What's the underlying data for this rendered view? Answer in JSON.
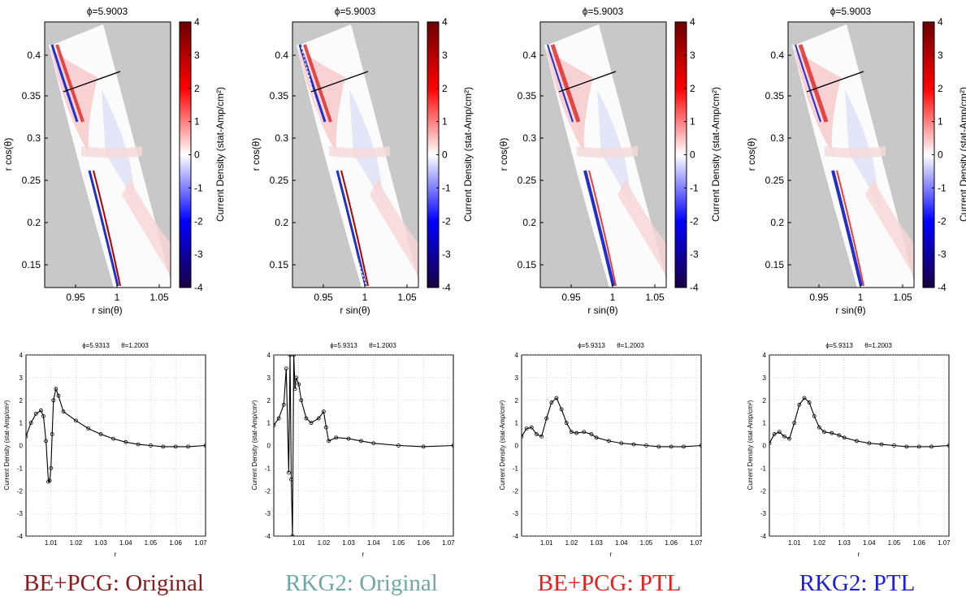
{
  "colormap": {
    "low": "#1a0040",
    "mid": "#ffffff",
    "high": "#6b0000"
  },
  "panels": [
    {
      "label": "BE+PCG: Original",
      "label_color": "#8b1a1a",
      "top": {
        "title": "ϕ=5.9003",
        "xlabel": "r sin(θ)",
        "ylabel": "r cos(θ)",
        "xticks": [
          "0.95",
          "1",
          "1.05"
        ],
        "yticks": [
          "0.15",
          "0.2",
          "0.25",
          "0.3",
          "0.35",
          "0.4"
        ],
        "cbar_label": "Current Density (stat-Amp/cm²)",
        "cbar_ticks": [
          "-4",
          "-3",
          "-2",
          "-1",
          "0",
          "1",
          "2",
          "3",
          "4"
        ]
      },
      "bottom": {
        "title_phi": "ϕ=5.9313",
        "title_theta": "θ=1.2003",
        "xlabel": "r",
        "ylabel": "Current Density (stat-Amp/cm²)",
        "xticks": [
          "1.01",
          "1.02",
          "1.03",
          "1.04",
          "1.05",
          "1.06",
          "1.07"
        ],
        "yticks": [
          "-4",
          "-3",
          "-2",
          "-1",
          "0",
          "1",
          "2",
          "3",
          "4"
        ]
      }
    },
    {
      "label": "RKG2: Original",
      "label_color": "#6fa7a7",
      "top": {
        "title": "ϕ=5.9003",
        "xlabel": "r sin(θ)",
        "ylabel": "r cos(θ)",
        "xticks": [
          "0.95",
          "1",
          "1.05"
        ],
        "yticks": [
          "0.15",
          "0.2",
          "0.25",
          "0.3",
          "0.35",
          "0.4"
        ],
        "cbar_label": "Current Density (stat-Amp/cm²)",
        "cbar_ticks": [
          "-4",
          "-3",
          "-2",
          "-1",
          "0",
          "1",
          "2",
          "3",
          "4"
        ]
      },
      "bottom": {
        "title_phi": "ϕ=5.9313",
        "title_theta": "θ=1.2003",
        "xlabel": "r",
        "ylabel": "Current Density (stat-Amp/cm²)",
        "xticks": [
          "1.01",
          "1.02",
          "1.03",
          "1.04",
          "1.05",
          "1.06",
          "1.07"
        ],
        "yticks": [
          "-4",
          "-3",
          "-2",
          "-1",
          "0",
          "1",
          "2",
          "3",
          "4"
        ]
      }
    },
    {
      "label": "BE+PCG: PTL",
      "label_color": "#ee1c1c",
      "top": {
        "title": "ϕ=5.9003",
        "xlabel": "r sin(θ)",
        "ylabel": "r cos(θ)",
        "xticks": [
          "0.95",
          "1",
          "1.05"
        ],
        "yticks": [
          "0.15",
          "0.2",
          "0.25",
          "0.3",
          "0.35",
          "0.4"
        ],
        "cbar_label": "Current Density (stat-Amp/cm²)",
        "cbar_ticks": [
          "-4",
          "-3",
          "-2",
          "-1",
          "0",
          "1",
          "2",
          "3",
          "4"
        ]
      },
      "bottom": {
        "title_phi": "ϕ=5.9313",
        "title_theta": "θ=1.2003",
        "xlabel": "r",
        "ylabel": "Current Density (stat-Amp/cm²)",
        "xticks": [
          "1.01",
          "1.02",
          "1.03",
          "1.04",
          "1.05",
          "1.06",
          "1.07"
        ],
        "yticks": [
          "-4",
          "-3",
          "-2",
          "-1",
          "0",
          "1",
          "2",
          "3",
          "4"
        ]
      }
    },
    {
      "label": "RKG2: PTL",
      "label_color": "#1a1aee",
      "top": {
        "title": "ϕ=5.9003",
        "xlabel": "r sin(θ)",
        "ylabel": "r cos(θ)",
        "xticks": [
          "0.95",
          "1",
          "1.05"
        ],
        "yticks": [
          "0.15",
          "0.2",
          "0.25",
          "0.3",
          "0.35",
          "0.4"
        ],
        "cbar_label": "Current Density (stat-Amp/cm²)",
        "cbar_ticks": [
          "-4",
          "-3",
          "-2",
          "-1",
          "0",
          "1",
          "2",
          "3",
          "4"
        ]
      },
      "bottom": {
        "title_phi": "ϕ=5.9313",
        "title_theta": "θ=1.2003",
        "xlabel": "r",
        "ylabel": "Current Density (stat-Amp/cm²)",
        "xticks": [
          "1.01",
          "1.02",
          "1.03",
          "1.04",
          "1.05",
          "1.06",
          "1.07"
        ],
        "yticks": [
          "-4",
          "-3",
          "-2",
          "-1",
          "0",
          "1",
          "2",
          "3",
          "4"
        ]
      }
    }
  ],
  "chart_data": [
    {
      "type": "line",
      "panel": "BE+PCG: Original",
      "xlim": [
        1.0,
        1.072
      ],
      "ylim": [
        -4,
        4
      ],
      "x": [
        1.0,
        1.002,
        1.004,
        1.006,
        1.007,
        1.008,
        1.009,
        1.0095,
        1.01,
        1.0105,
        1.011,
        1.012,
        1.013,
        1.015,
        1.02,
        1.025,
        1.03,
        1.035,
        1.04,
        1.045,
        1.05,
        1.055,
        1.06,
        1.065,
        1.072
      ],
      "y": [
        0.4,
        1.0,
        1.4,
        1.55,
        1.3,
        0.2,
        -1.6,
        -1.55,
        -1.0,
        0.5,
        2.0,
        2.5,
        2.2,
        1.5,
        1.1,
        0.75,
        0.5,
        0.3,
        0.15,
        0.05,
        0.0,
        -0.05,
        -0.05,
        -0.05,
        0.0
      ]
    },
    {
      "type": "line",
      "panel": "RKG2: Original",
      "xlim": [
        1.0,
        1.072
      ],
      "ylim": [
        -4,
        4
      ],
      "x": [
        1.0,
        1.002,
        1.004,
        1.005,
        1.006,
        1.0065,
        1.007,
        1.0075,
        1.008,
        1.0085,
        1.009,
        1.01,
        1.011,
        1.013,
        1.015,
        1.018,
        1.02,
        1.021,
        1.022,
        1.025,
        1.03,
        1.035,
        1.04,
        1.05,
        1.06,
        1.072
      ],
      "y": [
        0.9,
        1.2,
        1.8,
        3.4,
        -1.2,
        4.0,
        -1.5,
        -4.0,
        4.0,
        2.5,
        3.0,
        2.7,
        2.0,
        1.2,
        1.0,
        1.2,
        1.5,
        0.8,
        0.2,
        0.35,
        0.3,
        0.2,
        0.1,
        0.0,
        -0.05,
        0.0
      ]
    },
    {
      "type": "line",
      "panel": "BE+PCG: PTL",
      "xlim": [
        1.0,
        1.072
      ],
      "ylim": [
        -4,
        4
      ],
      "x": [
        1.0,
        1.002,
        1.004,
        1.006,
        1.008,
        1.01,
        1.012,
        1.014,
        1.016,
        1.018,
        1.02,
        1.022,
        1.025,
        1.028,
        1.03,
        1.035,
        1.04,
        1.045,
        1.05,
        1.055,
        1.06,
        1.065,
        1.072
      ],
      "y": [
        0.4,
        0.75,
        0.8,
        0.5,
        0.4,
        1.2,
        1.9,
        2.1,
        1.6,
        1.0,
        0.6,
        0.55,
        0.6,
        0.5,
        0.35,
        0.2,
        0.1,
        0.05,
        0.0,
        -0.05,
        -0.05,
        -0.05,
        0.0
      ]
    },
    {
      "type": "line",
      "panel": "RKG2: PTL",
      "xlim": [
        1.0,
        1.072
      ],
      "ylim": [
        -4,
        4
      ],
      "x": [
        1.0,
        1.002,
        1.004,
        1.006,
        1.008,
        1.01,
        1.012,
        1.014,
        1.016,
        1.018,
        1.02,
        1.022,
        1.025,
        1.028,
        1.03,
        1.035,
        1.04,
        1.045,
        1.05,
        1.055,
        1.06,
        1.065,
        1.072
      ],
      "y": [
        0.1,
        0.5,
        0.6,
        0.4,
        0.3,
        1.0,
        1.8,
        2.1,
        1.9,
        1.3,
        0.8,
        0.6,
        0.55,
        0.45,
        0.35,
        0.2,
        0.1,
        0.05,
        0.0,
        -0.05,
        -0.05,
        -0.05,
        0.0
      ]
    }
  ]
}
